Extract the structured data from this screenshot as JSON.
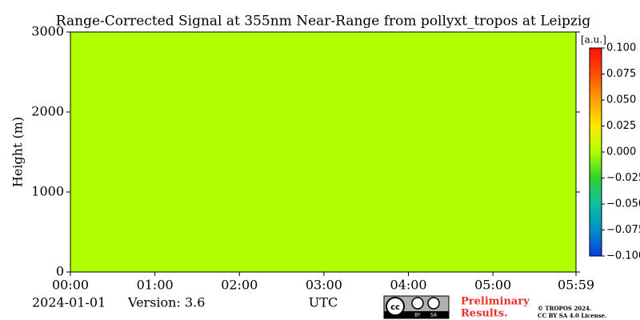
{
  "chart_data": {
    "type": "heatmap",
    "title": "Range-Corrected Signal at 355nm Near-Range from pollyxt_tropos at Leipzig",
    "ylabel": "Height (m)",
    "xlabel": "UTC",
    "date": "2024-01-01",
    "version": "Version: 3.6",
    "x_edges": [
      0,
      5.9833
    ],
    "y_edges": [
      0,
      3000
    ],
    "values": [
      [
        0
      ]
    ],
    "xlim": [
      0,
      5.9833
    ],
    "ylim": [
      0,
      3000
    ],
    "xticks": [
      {
        "value": 0,
        "label": "00:00"
      },
      {
        "value": 1,
        "label": "01:00"
      },
      {
        "value": 2,
        "label": "02:00"
      },
      {
        "value": 3,
        "label": "03:00"
      },
      {
        "value": 4,
        "label": "04:00"
      },
      {
        "value": 5,
        "label": "05:00"
      },
      {
        "value": 5.9833,
        "label": "05:59"
      }
    ],
    "yticks": [
      0,
      1000,
      2000,
      3000
    ],
    "colorbar": {
      "label": "[a.u.]",
      "lim": [
        -0.1,
        0.1
      ],
      "colors": [
        "#0040e0",
        "#0090c8",
        "#10c0a0",
        "#30d030",
        "#b0ff00",
        "#ffe800",
        "#ffa000",
        "#ff5000",
        "#ff1000"
      ],
      "ticks": [
        {
          "value": 0.1,
          "label": "0.100"
        },
        {
          "value": 0.075,
          "label": "0.075"
        },
        {
          "value": 0.05,
          "label": "0.050"
        },
        {
          "value": 0.025,
          "label": "0.025"
        },
        {
          "value": 0,
          "label": "0.000"
        },
        {
          "value": -0.025,
          "label": "−0.025"
        },
        {
          "value": -0.05,
          "label": "−0.050"
        },
        {
          "value": -0.075,
          "label": "−0.075"
        },
        {
          "value": -0.1,
          "label": "−0.100"
        }
      ]
    },
    "notice": [
      "Preliminary",
      "Results."
    ],
    "license_badge": [
      "cc",
      "BY",
      "SA"
    ],
    "copyright": [
      "© TROPOS 2024.",
      "CC BY SA 4.0 License."
    ]
  }
}
